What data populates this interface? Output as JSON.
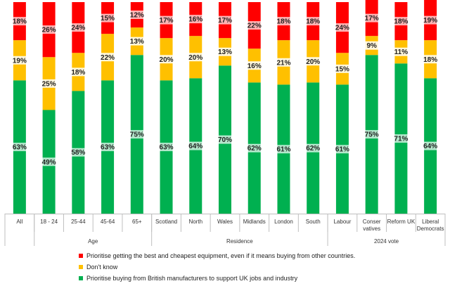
{
  "chart_data": {
    "type": "bar",
    "stacked": true,
    "categories": [
      "All",
      "18 - 24",
      "25-44",
      "45-64",
      "65+",
      "Scotland",
      "North",
      "Wales",
      "Midlands",
      "London",
      "South",
      "Labour",
      "Conser vatives",
      "Reform UK",
      "Liberal Democrats"
    ],
    "groups": [
      {
        "label": "",
        "start": 0,
        "end": 0
      },
      {
        "label": "Age",
        "start": 1,
        "end": 4
      },
      {
        "label": "Residence",
        "start": 5,
        "end": 10
      },
      {
        "label": "2024 vote",
        "start": 11,
        "end": 14
      }
    ],
    "series": [
      {
        "name": "Prioritise buying from British manufacturers to support UK jobs and industry",
        "color": "#00b050",
        "values": [
          63,
          49,
          58,
          63,
          75,
          63,
          64,
          70,
          62,
          61,
          62,
          61,
          75,
          71,
          64
        ]
      },
      {
        "name": "Don't know",
        "color": "#ffc000",
        "values": [
          19,
          25,
          18,
          22,
          13,
          20,
          20,
          13,
          16,
          21,
          20,
          15,
          9,
          11,
          18
        ]
      },
      {
        "name": "Prioritise getting the best and cheapest equipment, even if it means buying from other countries.",
        "color": "#ff0000",
        "values": [
          18,
          26,
          24,
          15,
          12,
          17,
          16,
          17,
          22,
          18,
          18,
          24,
          17,
          18,
          19
        ]
      }
    ],
    "data_labels": [
      [
        "63%",
        "49%",
        "58%",
        "63%",
        "75%",
        "63%",
        "64%",
        "70%",
        "62%",
        "61%",
        "62%",
        "61%",
        "75%",
        "71%",
        "64%"
      ],
      [
        "19%",
        "25%",
        "18%",
        "22%",
        "13%",
        "20%",
        "20%",
        "13%",
        "16%",
        "21%",
        "20%",
        "15%",
        "9%",
        "11%",
        "18%"
      ],
      [
        "18%",
        "26%",
        "24%",
        "15%",
        "12%",
        "17%",
        "16%",
        "17%",
        "22%",
        "18%",
        "18%",
        "24%",
        "17%",
        "18%",
        "19%"
      ]
    ],
    "ylim": [
      0,
      100
    ],
    "legend_position": "bottom",
    "legend": [
      {
        "label": "Prioritise getting the best and cheapest equipment, even if it means buying from other countries.",
        "color": "#ff0000"
      },
      {
        "label": "Don't know",
        "color": "#ffc000"
      },
      {
        "label": "Prioritise buying from British manufacturers to support UK jobs and industry",
        "color": "#00b050"
      }
    ]
  }
}
